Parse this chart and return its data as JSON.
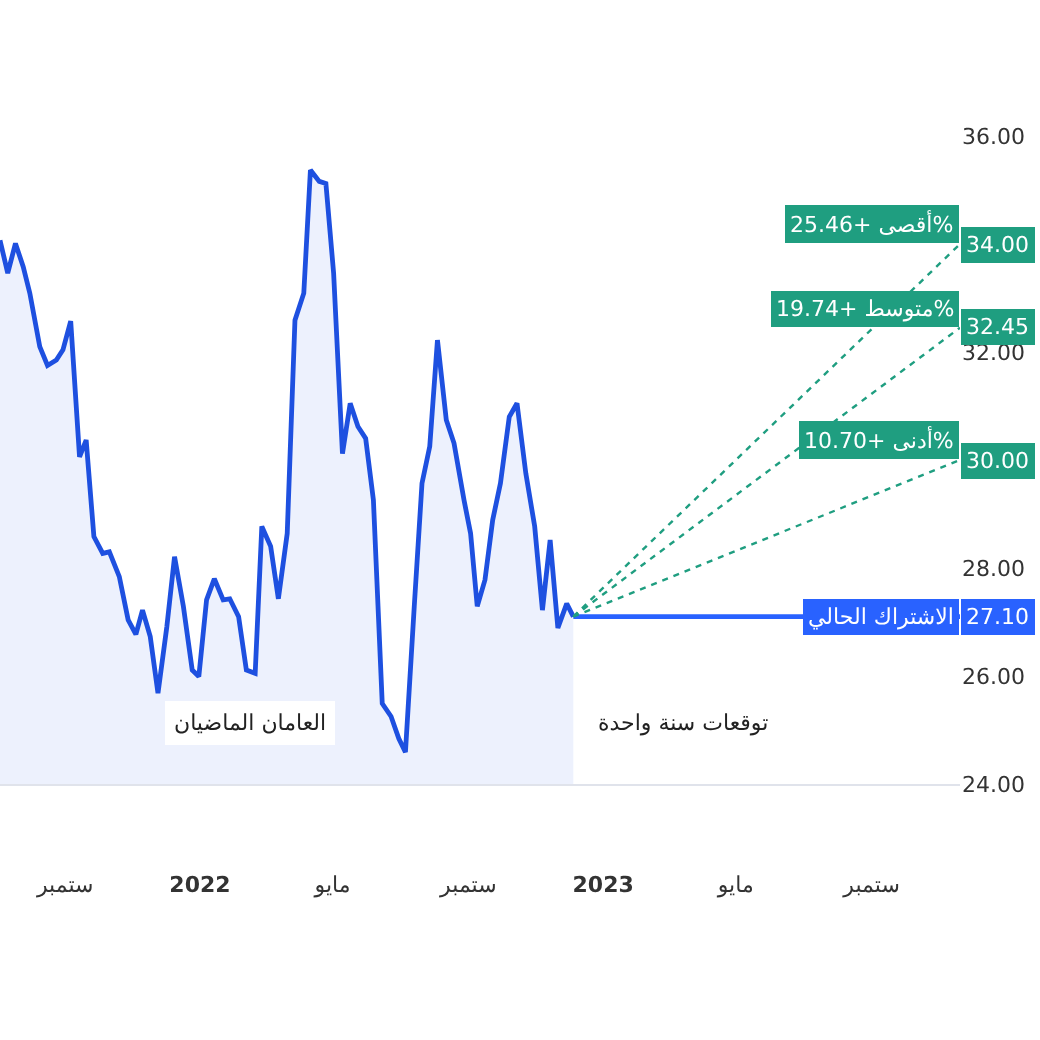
{
  "chart_data": {
    "type": "line",
    "xlim": [
      "2021-07-04",
      "2023-11-20"
    ],
    "xticks": [
      {
        "value": "2021-09-01",
        "label": "ستمبر"
      },
      {
        "value": "2022-01-01",
        "label": "2022"
      },
      {
        "value": "2022-05-01",
        "label": "مايو"
      },
      {
        "value": "2022-09-01",
        "label": "ستمبر"
      },
      {
        "value": "2023-01-01",
        "label": "2023"
      },
      {
        "value": "2023-05-01",
        "label": "مايو"
      },
      {
        "value": "2023-09-01",
        "label": "ستمبر"
      }
    ],
    "ylim": [
      24,
      36
    ],
    "yticks": [
      {
        "value": 24,
        "label": "24.00"
      },
      {
        "value": 26,
        "label": "26.00"
      },
      {
        "value": 28,
        "label": "28.00"
      },
      {
        "value": 32,
        "label": "32.00"
      },
      {
        "value": 36,
        "label": "36.00"
      }
    ],
    "legend": false,
    "series": [
      {
        "type": "area",
        "color": "#1e50e0",
        "line_style": "solid",
        "x": [
          "2021-07-04",
          "2021-07-11",
          "2021-07-18",
          "2021-07-25",
          "2021-07-31",
          "2021-08-09",
          "2021-08-16",
          "2021-08-24",
          "2021-08-30",
          "2021-09-06",
          "2021-09-14",
          "2021-09-20",
          "2021-09-27",
          "2021-10-05",
          "2021-10-11",
          "2021-10-20",
          "2021-10-28",
          "2021-11-04",
          "2021-11-10",
          "2021-11-17",
          "2021-11-24",
          "2021-12-02",
          "2021-12-09",
          "2021-12-17",
          "2021-12-25",
          "2021-12-31",
          "2022-01-07",
          "2022-01-14",
          "2022-01-22",
          "2022-01-28",
          "2022-02-05",
          "2022-02-12",
          "2022-02-20",
          "2022-02-26",
          "2022-03-06",
          "2022-03-13",
          "2022-03-21",
          "2022-03-28",
          "2022-04-05",
          "2022-04-11",
          "2022-04-19",
          "2022-04-25",
          "2022-05-02",
          "2022-05-10",
          "2022-05-17",
          "2022-05-24",
          "2022-05-31",
          "2022-06-07",
          "2022-06-15",
          "2022-06-23",
          "2022-06-30",
          "2022-07-06",
          "2022-07-14",
          "2022-07-21",
          "2022-07-28",
          "2022-08-04",
          "2022-08-12",
          "2022-08-19",
          "2022-08-28",
          "2022-09-03",
          "2022-09-09",
          "2022-09-16",
          "2022-09-23",
          "2022-09-30",
          "2022-10-08",
          "2022-10-15",
          "2022-10-23",
          "2022-10-31",
          "2022-11-07",
          "2022-11-14",
          "2022-11-21",
          "2022-11-29",
          "2022-12-05"
        ],
        "values": [
          34.07,
          33.46,
          34.01,
          33.58,
          33.09,
          32.1,
          31.75,
          31.85,
          32.04,
          32.57,
          30.06,
          30.37,
          28.58,
          28.27,
          28.3,
          27.84,
          27.04,
          26.77,
          27.22,
          26.73,
          25.68,
          26.91,
          28.21,
          27.29,
          26.11,
          25.99,
          27.41,
          27.8,
          27.41,
          27.43,
          27.1,
          26.11,
          26.05,
          28.77,
          28.4,
          27.43,
          28.64,
          32.59,
          33.09,
          35.37,
          35.16,
          35.12,
          33.46,
          30.12,
          31.05,
          30.62,
          30.4,
          29.26,
          25.49,
          25.25,
          24.84,
          24.59,
          27.29,
          29.57,
          30.25,
          32.22,
          30.74,
          30.31,
          29.26,
          28.64,
          27.29,
          27.78,
          28.89,
          29.57,
          30.8,
          31.05,
          29.75,
          28.77,
          27.22,
          28.52,
          26.89,
          27.34,
          27.1
        ]
      },
      {
        "color": "#2962ff",
        "line_style": "solid",
        "x": [
          "2022-12-05",
          "2023-11-20"
        ],
        "values": [
          27.1,
          27.1
        ],
        "value_labels": [
          null,
          "27.10"
        ]
      },
      {
        "color": "#1f9e80",
        "line_style": "dotted",
        "x": [
          "2022-12-05",
          "2023-11-20"
        ],
        "values": [
          27.1,
          30.0
        ],
        "value_labels": [
          null,
          "30.00"
        ]
      },
      {
        "color": "#1f9e80",
        "line_style": "dotted",
        "x": [
          "2022-12-05",
          "2023-11-20"
        ],
        "values": [
          27.1,
          32.45
        ],
        "value_labels": [
          null,
          "32.45"
        ]
      },
      {
        "color": "#1f9e80",
        "line_style": "dotted",
        "x": [
          "2022-12-05",
          "2023-11-20"
        ],
        "values": [
          27.1,
          34.0
        ],
        "value_labels": [
          null,
          "34.00"
        ]
      }
    ],
    "annotations": [
      "العامان الماضيان",
      "توقعات سنة واحدة",
      {
        "text": "أقصى +25.46%",
        "x": "2023-11-20",
        "y": 34.0
      },
      {
        "text": "متوسط +19.74%",
        "x": "2023-11-20",
        "y": 32.45
      },
      {
        "text": "أدنى +10.70%",
        "x": "2023-11-20",
        "y": 30.0
      },
      {
        "text": "الاشتراك الحالي",
        "x": "2023-11-20",
        "y": 27.1
      }
    ]
  }
}
